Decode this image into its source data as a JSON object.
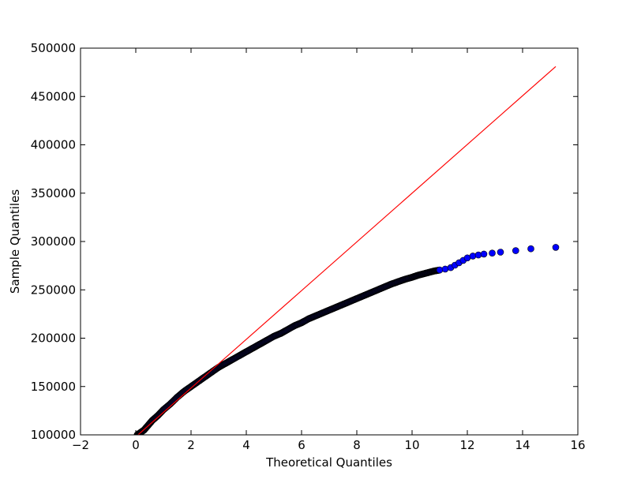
{
  "chart_data": {
    "type": "scatter",
    "title": "",
    "xlabel": "Theoretical Quantiles",
    "ylabel": "Sample Quantiles",
    "xlim": [
      -2,
      16
    ],
    "ylim": [
      100000,
      500000
    ],
    "xticks": [
      -2,
      0,
      2,
      4,
      6,
      8,
      10,
      12,
      14,
      16
    ],
    "yticks": [
      100000,
      150000,
      200000,
      250000,
      300000,
      350000,
      400000,
      450000,
      500000
    ],
    "xtick_labels": [
      "−2",
      "0",
      "2",
      "4",
      "6",
      "8",
      "10",
      "12",
      "14",
      "16"
    ],
    "ytick_labels": [
      "100000",
      "150000",
      "200000",
      "250000",
      "300000",
      "350000",
      "400000",
      "450000",
      "500000"
    ],
    "grid": false,
    "colors": {
      "points_dense": "#0b0b4a",
      "points_sparse": "#0000ff",
      "reference_line": "#ff0000"
    },
    "series": [
      {
        "kind": "points",
        "x": [
          0.05,
          0.15,
          0.3,
          0.45,
          0.6,
          0.8,
          1.0,
          1.25,
          1.5,
          1.75,
          2.0,
          2.25,
          2.5,
          2.75,
          3.0,
          3.25,
          3.5,
          3.75,
          4.0,
          4.25,
          4.5,
          4.75,
          5.0,
          5.25,
          5.5,
          5.75,
          6.0,
          6.25,
          6.5,
          6.75,
          7.0,
          7.25,
          7.5,
          7.75,
          8.0,
          8.25,
          8.5,
          8.75,
          9.0,
          9.25,
          9.5,
          9.75,
          10.0,
          10.2,
          10.4,
          10.6,
          10.8,
          11.0,
          11.2,
          11.4,
          11.55,
          11.7,
          11.85,
          12.0,
          12.2,
          12.4,
          12.6,
          12.9,
          13.2,
          13.75,
          14.3,
          15.2
        ],
        "y": [
          100000,
          102000,
          105000,
          110000,
          115000,
          120000,
          126000,
          132000,
          139000,
          145000,
          150000,
          155000,
          160000,
          165000,
          170000,
          174000,
          178000,
          182000,
          186000,
          190000,
          194000,
          198000,
          202000,
          205000,
          209000,
          213000,
          216000,
          220000,
          223000,
          226000,
          229000,
          232000,
          235000,
          238000,
          241000,
          244000,
          247000,
          250000,
          253000,
          256000,
          258500,
          261000,
          263000,
          265000,
          266500,
          268000,
          269500,
          270500,
          271500,
          273000,
          275500,
          278000,
          280500,
          283000,
          285000,
          286000,
          287000,
          288000,
          289000,
          290500,
          292500,
          294000
        ]
      },
      {
        "kind": "reference_line",
        "x": [
          0.0,
          15.2
        ],
        "y": [
          98000,
          481000
        ]
      }
    ]
  }
}
